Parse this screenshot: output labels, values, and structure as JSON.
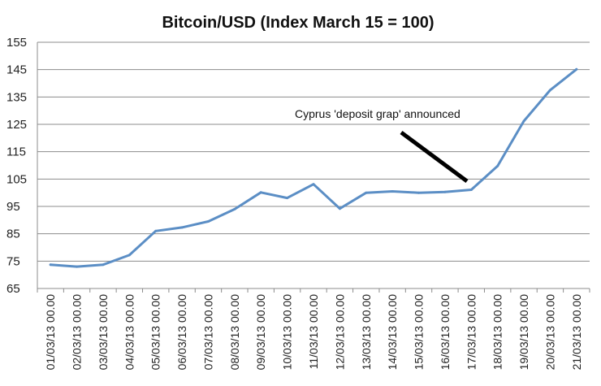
{
  "chart_data": {
    "type": "line",
    "title": "Bitcoin/USD (Index March 15 = 100)",
    "xlabel": "",
    "ylabel": "",
    "ylim": [
      65,
      155
    ],
    "yticks": [
      65,
      75,
      85,
      95,
      105,
      115,
      125,
      135,
      145,
      155
    ],
    "grid": true,
    "categories": [
      "01/03/13 00.00",
      "02/03/13 00.00",
      "03/03/13 00.00",
      "04/03/13 00.00",
      "05/03/13 00.00",
      "06/03/13 00.00",
      "07/03/13 00.00",
      "08/03/13 00.00",
      "09/03/13 00.00",
      "10/03/13 00.00",
      "11/03/13 00.00",
      "12/03/13 00.00",
      "13/03/13 00.00",
      "14/03/13 00.00",
      "15/03/13 00.00",
      "16/03/13 00.00",
      "17/03/13 00.00",
      "18/03/13 00.00",
      "19/03/13 00.00",
      "20/03/13 00.00",
      "21/03/13 00.00"
    ],
    "series": [
      {
        "color": "#5b8ec5",
        "values": [
          73.7,
          73.0,
          73.7,
          77.2,
          86.0,
          87.3,
          89.5,
          94.0,
          100.1,
          98.1,
          103.1,
          94.2,
          100.0,
          100.5,
          100.0,
          100.3,
          101.1,
          109.8,
          126.2,
          137.5,
          145.1
        ]
      }
    ],
    "annotations": [
      {
        "text": "Cyprus 'deposit grap' announced"
      }
    ]
  }
}
